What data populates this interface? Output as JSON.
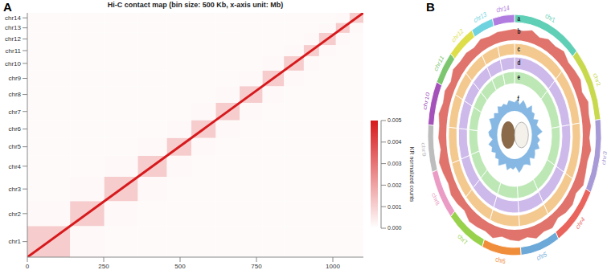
{
  "chart_data": [
    {
      "type": "heatmap",
      "panel": "A",
      "title": "Hi-C contact map (bin size: 500 Kb, x-axis unit: Mb)",
      "chromosomes": [
        {
          "name": "chr1",
          "length": 140
        },
        {
          "name": "chr2",
          "length": 112
        },
        {
          "name": "chr3",
          "length": 110
        },
        {
          "name": "chr4",
          "length": 95
        },
        {
          "name": "chr5",
          "length": 80
        },
        {
          "name": "chr6",
          "length": 80
        },
        {
          "name": "chr7",
          "length": 78
        },
        {
          "name": "chr8",
          "length": 75
        },
        {
          "name": "chr9",
          "length": 70
        },
        {
          "name": "chr10",
          "length": 65
        },
        {
          "name": "chr11",
          "length": 50
        },
        {
          "name": "chr12",
          "length": 55
        },
        {
          "name": "chr13",
          "length": 45
        },
        {
          "name": "chr14",
          "length": 45
        }
      ],
      "xlim": [
        0,
        1100
      ],
      "ylim": [
        0,
        1100
      ],
      "xticks": [
        0,
        250,
        500,
        750,
        1000
      ],
      "cells": [
        [
          0.0011,
          0.00015,
          0.0001,
          0.0001,
          0.0001,
          0.0001,
          0.0001,
          0.0001,
          0.0001,
          0.0001,
          0.0001,
          0.0001,
          0.0001,
          0.0001
        ],
        [
          0.00015,
          0.0011,
          0.00015,
          0.0001,
          0.0001,
          0.0001,
          0.0001,
          0.0001,
          0.0001,
          0.0001,
          0.0001,
          0.0001,
          0.0001,
          0.0001
        ],
        [
          0.0001,
          0.00015,
          0.0011,
          0.00015,
          0.0001,
          0.0001,
          0.0001,
          0.0001,
          0.0001,
          0.0001,
          0.0001,
          0.0001,
          0.0001,
          0.0001
        ],
        [
          0.0001,
          0.0001,
          0.00015,
          0.0011,
          0.00015,
          0.0001,
          0.0001,
          0.0001,
          0.0001,
          0.0001,
          0.0001,
          0.0001,
          0.0001,
          0.0001
        ],
        [
          0.0001,
          0.0001,
          0.0001,
          0.00015,
          0.0011,
          0.00015,
          0.0001,
          0.0001,
          0.0001,
          0.0001,
          0.0001,
          0.0001,
          0.0001,
          0.0001
        ],
        [
          0.0001,
          0.0001,
          0.0001,
          0.0001,
          0.00015,
          0.0011,
          0.00015,
          0.0001,
          0.0001,
          0.0001,
          0.0001,
          0.0001,
          0.0001,
          0.0001
        ],
        [
          0.0001,
          0.0001,
          0.0001,
          0.0001,
          0.0001,
          0.00015,
          0.0011,
          0.00015,
          0.0001,
          0.0001,
          0.0001,
          0.0001,
          0.0001,
          0.0001
        ],
        [
          0.0001,
          0.0001,
          0.0001,
          0.0001,
          0.0001,
          0.0001,
          0.00015,
          0.0011,
          0.00015,
          0.0001,
          0.0001,
          0.0001,
          0.0001,
          0.0001
        ],
        [
          0.0001,
          0.0001,
          0.0001,
          0.0001,
          0.0001,
          0.0001,
          0.0001,
          0.00015,
          0.0011,
          0.00015,
          0.0001,
          0.0001,
          0.0001,
          0.0001
        ],
        [
          0.0001,
          0.0001,
          0.0001,
          0.0001,
          0.0001,
          0.0001,
          0.0001,
          0.0001,
          0.00015,
          0.0011,
          0.00015,
          0.0001,
          0.0001,
          0.0001
        ],
        [
          0.0001,
          0.0001,
          0.0001,
          0.0001,
          0.0001,
          0.0001,
          0.0001,
          0.0001,
          0.0001,
          0.00015,
          0.0011,
          0.00015,
          0.0001,
          0.0001
        ],
        [
          0.0001,
          0.0001,
          0.0001,
          0.0001,
          0.0001,
          0.0001,
          0.0001,
          0.0001,
          0.0001,
          0.0001,
          0.00015,
          0.0011,
          0.00015,
          0.0001
        ],
        [
          0.0001,
          0.0001,
          0.0001,
          0.0001,
          0.0001,
          0.0001,
          0.0001,
          0.0001,
          0.0001,
          0.0001,
          0.0001,
          0.00015,
          0.0011,
          0.00015
        ],
        [
          0.0001,
          0.0001,
          0.0001,
          0.0001,
          0.0001,
          0.0001,
          0.0001,
          0.0001,
          0.0001,
          0.0001,
          0.0001,
          0.0001,
          0.00015,
          0.0011
        ]
      ],
      "diagonal": 0.005,
      "colorbar": {
        "range": [
          0,
          0.005
        ],
        "ticks": [
          {
            "value": 0,
            "label": "0.000"
          },
          0.001,
          0.002,
          0.003,
          0.004,
          0.005
        ],
        "label": "KR normalized counts"
      }
    },
    {
      "type": "circos",
      "panel": "B",
      "chromosomes": [
        {
          "name": "chr1",
          "length": 140,
          "color": "#5fcfb5"
        },
        {
          "name": "chr2",
          "length": 112,
          "color": "#c8d94e"
        },
        {
          "name": "chr3",
          "length": 110,
          "color": "#a79ad6"
        },
        {
          "name": "chr4",
          "length": 95,
          "color": "#e8645c"
        },
        {
          "name": "chr5",
          "length": 80,
          "color": "#6ca8d8"
        },
        {
          "name": "chr6",
          "length": 80,
          "color": "#f08d3a"
        },
        {
          "name": "chr7",
          "length": 78,
          "color": "#98d24c"
        },
        {
          "name": "chr8",
          "length": 75,
          "color": "#ea9cc4"
        },
        {
          "name": "chr9",
          "length": 70,
          "color": "#bdbdbd"
        },
        {
          "name": "chr10",
          "length": 65,
          "color": "#a452b9"
        },
        {
          "name": "chr11",
          "length": 50,
          "color": "#7cc66f"
        },
        {
          "name": "chr12",
          "length": 55,
          "color": "#dede4a"
        },
        {
          "name": "chr13",
          "length": 45,
          "color": "#6fd3df"
        },
        {
          "name": "chr14",
          "length": 45,
          "color": "#b17ce0"
        }
      ],
      "x": [
        0,
        20,
        40,
        60,
        80,
        100,
        120,
        140,
        160,
        180,
        200,
        220,
        240,
        260,
        280,
        300,
        320,
        340,
        360,
        380,
        400,
        420,
        440,
        460,
        480,
        500,
        520,
        540,
        560,
        580,
        600,
        620,
        640,
        660,
        680,
        700,
        720,
        740,
        760,
        780,
        800,
        820,
        840,
        860,
        880,
        900,
        920,
        940,
        960,
        980,
        1000,
        1020,
        1040,
        1060,
        1080
      ],
      "tracks": [
        {
          "name": "a",
          "type": "ideogram"
        },
        {
          "name": "b",
          "type": "histogram",
          "color": "#e0736b",
          "ylim": [
            0,
            100
          ],
          "values": [
            62,
            55,
            70,
            48,
            66,
            58,
            74,
            52,
            60,
            68,
            45,
            71,
            57,
            63,
            50,
            69,
            54,
            61,
            73,
            47,
            65,
            59,
            42,
            67,
            56,
            72,
            49,
            64,
            58,
            46,
            70,
            53,
            61,
            68,
            44,
            57,
            66,
            51,
            63,
            75,
            48,
            60,
            55,
            69,
            52,
            64,
            47,
            71,
            58,
            62,
            50,
            67,
            54,
            60,
            57
          ]
        },
        {
          "name": "c",
          "type": "ring",
          "color": "#f3c98f"
        },
        {
          "name": "d",
          "type": "ring",
          "color": "#cdb9ea"
        },
        {
          "name": "e",
          "type": "ring",
          "color": "#bde8b6"
        },
        {
          "name": "f",
          "type": "histogram",
          "color": "#86b8e3",
          "ylim": [
            0,
            100
          ],
          "values": [
            35,
            48,
            28,
            52,
            41,
            30,
            57,
            38,
            45,
            26,
            50,
            33,
            44,
            60,
            29,
            47,
            36,
            53,
            31,
            42,
            49,
            27,
            55,
            39,
            34,
            46,
            58,
            32,
            43,
            37,
            51,
            28,
            40,
            56,
            35,
            45,
            30,
            48,
            38,
            54,
            27,
            44,
            50,
            33,
            41,
            59,
            36,
            47,
            29,
            52,
            39,
            43,
            31,
            46,
            40
          ]
        }
      ]
    }
  ]
}
